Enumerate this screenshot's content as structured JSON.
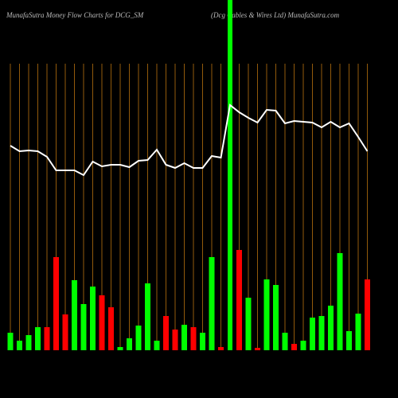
{
  "chart_data": {
    "type": "money-flow",
    "title": "MunafaSutra  Money Flow  Charts for DCG_SM",
    "subtitle": "(Dcg Cables & Wires Ltd) MunafaSutra.com",
    "categories": [
      null,
      null,
      null,
      null,
      null,
      null,
      null,
      null,
      null,
      null,
      null,
      null,
      null,
      null,
      null,
      null,
      null,
      null,
      null,
      null,
      null,
      null,
      null,
      null,
      null,
      null,
      null,
      null,
      null,
      null,
      null,
      null,
      null,
      null,
      null,
      null,
      null,
      null,
      null,
      null
    ],
    "ylim": [
      0,
      360
    ],
    "series": [
      {
        "kind": "bar",
        "values": [
          22,
          12,
          19,
          29,
          29,
          117,
          45,
          88,
          58,
          80,
          69,
          54,
          4,
          15,
          31,
          84,
          12,
          43,
          26,
          32,
          29,
          22,
          117,
          4,
          null,
          126,
          66,
          3,
          89,
          82,
          22,
          8,
          12,
          41,
          43,
          56,
          122,
          24,
          46,
          89
        ],
        "colors": [
          "#00ff00",
          "#00ff00",
          "#00ff00",
          "#00ff00",
          "#ff0000",
          "#ff0000",
          "#ff0000",
          "#00ff00",
          "#00ff00",
          "#00ff00",
          "#ff0000",
          "#ff0000",
          "#00ff00",
          "#00ff00",
          "#00ff00",
          "#00ff00",
          "#00ff00",
          "#ff0000",
          "#ff0000",
          "#00ff00",
          "#ff0000",
          "#00ff00",
          "#00ff00",
          "#ff0000",
          "#00ff00",
          "#ff0000",
          "#00ff00",
          "#ff0000",
          "#00ff00",
          "#00ff00",
          "#00ff00",
          "#ff0000",
          "#00ff00",
          "#00ff00",
          "#00ff00",
          "#00ff00",
          "#00ff00",
          "#00ff00",
          "#00ff00",
          "#ff0000"
        ]
      },
      {
        "kind": "line",
        "color": "#ffffff",
        "values": [
          257,
          250,
          251,
          250,
          243,
          226,
          226,
          226,
          220,
          237,
          231,
          233,
          233,
          230,
          238,
          239,
          252,
          233,
          229,
          235,
          229,
          229,
          244,
          242,
          308,
          299,
          292,
          286,
          302,
          301,
          285,
          288,
          287,
          286,
          280,
          287,
          280,
          285,
          268,
          250
        ]
      }
    ],
    "grid_color": "#b8720e",
    "highlight_index": 24,
    "highlight_color": "#00ff00"
  }
}
